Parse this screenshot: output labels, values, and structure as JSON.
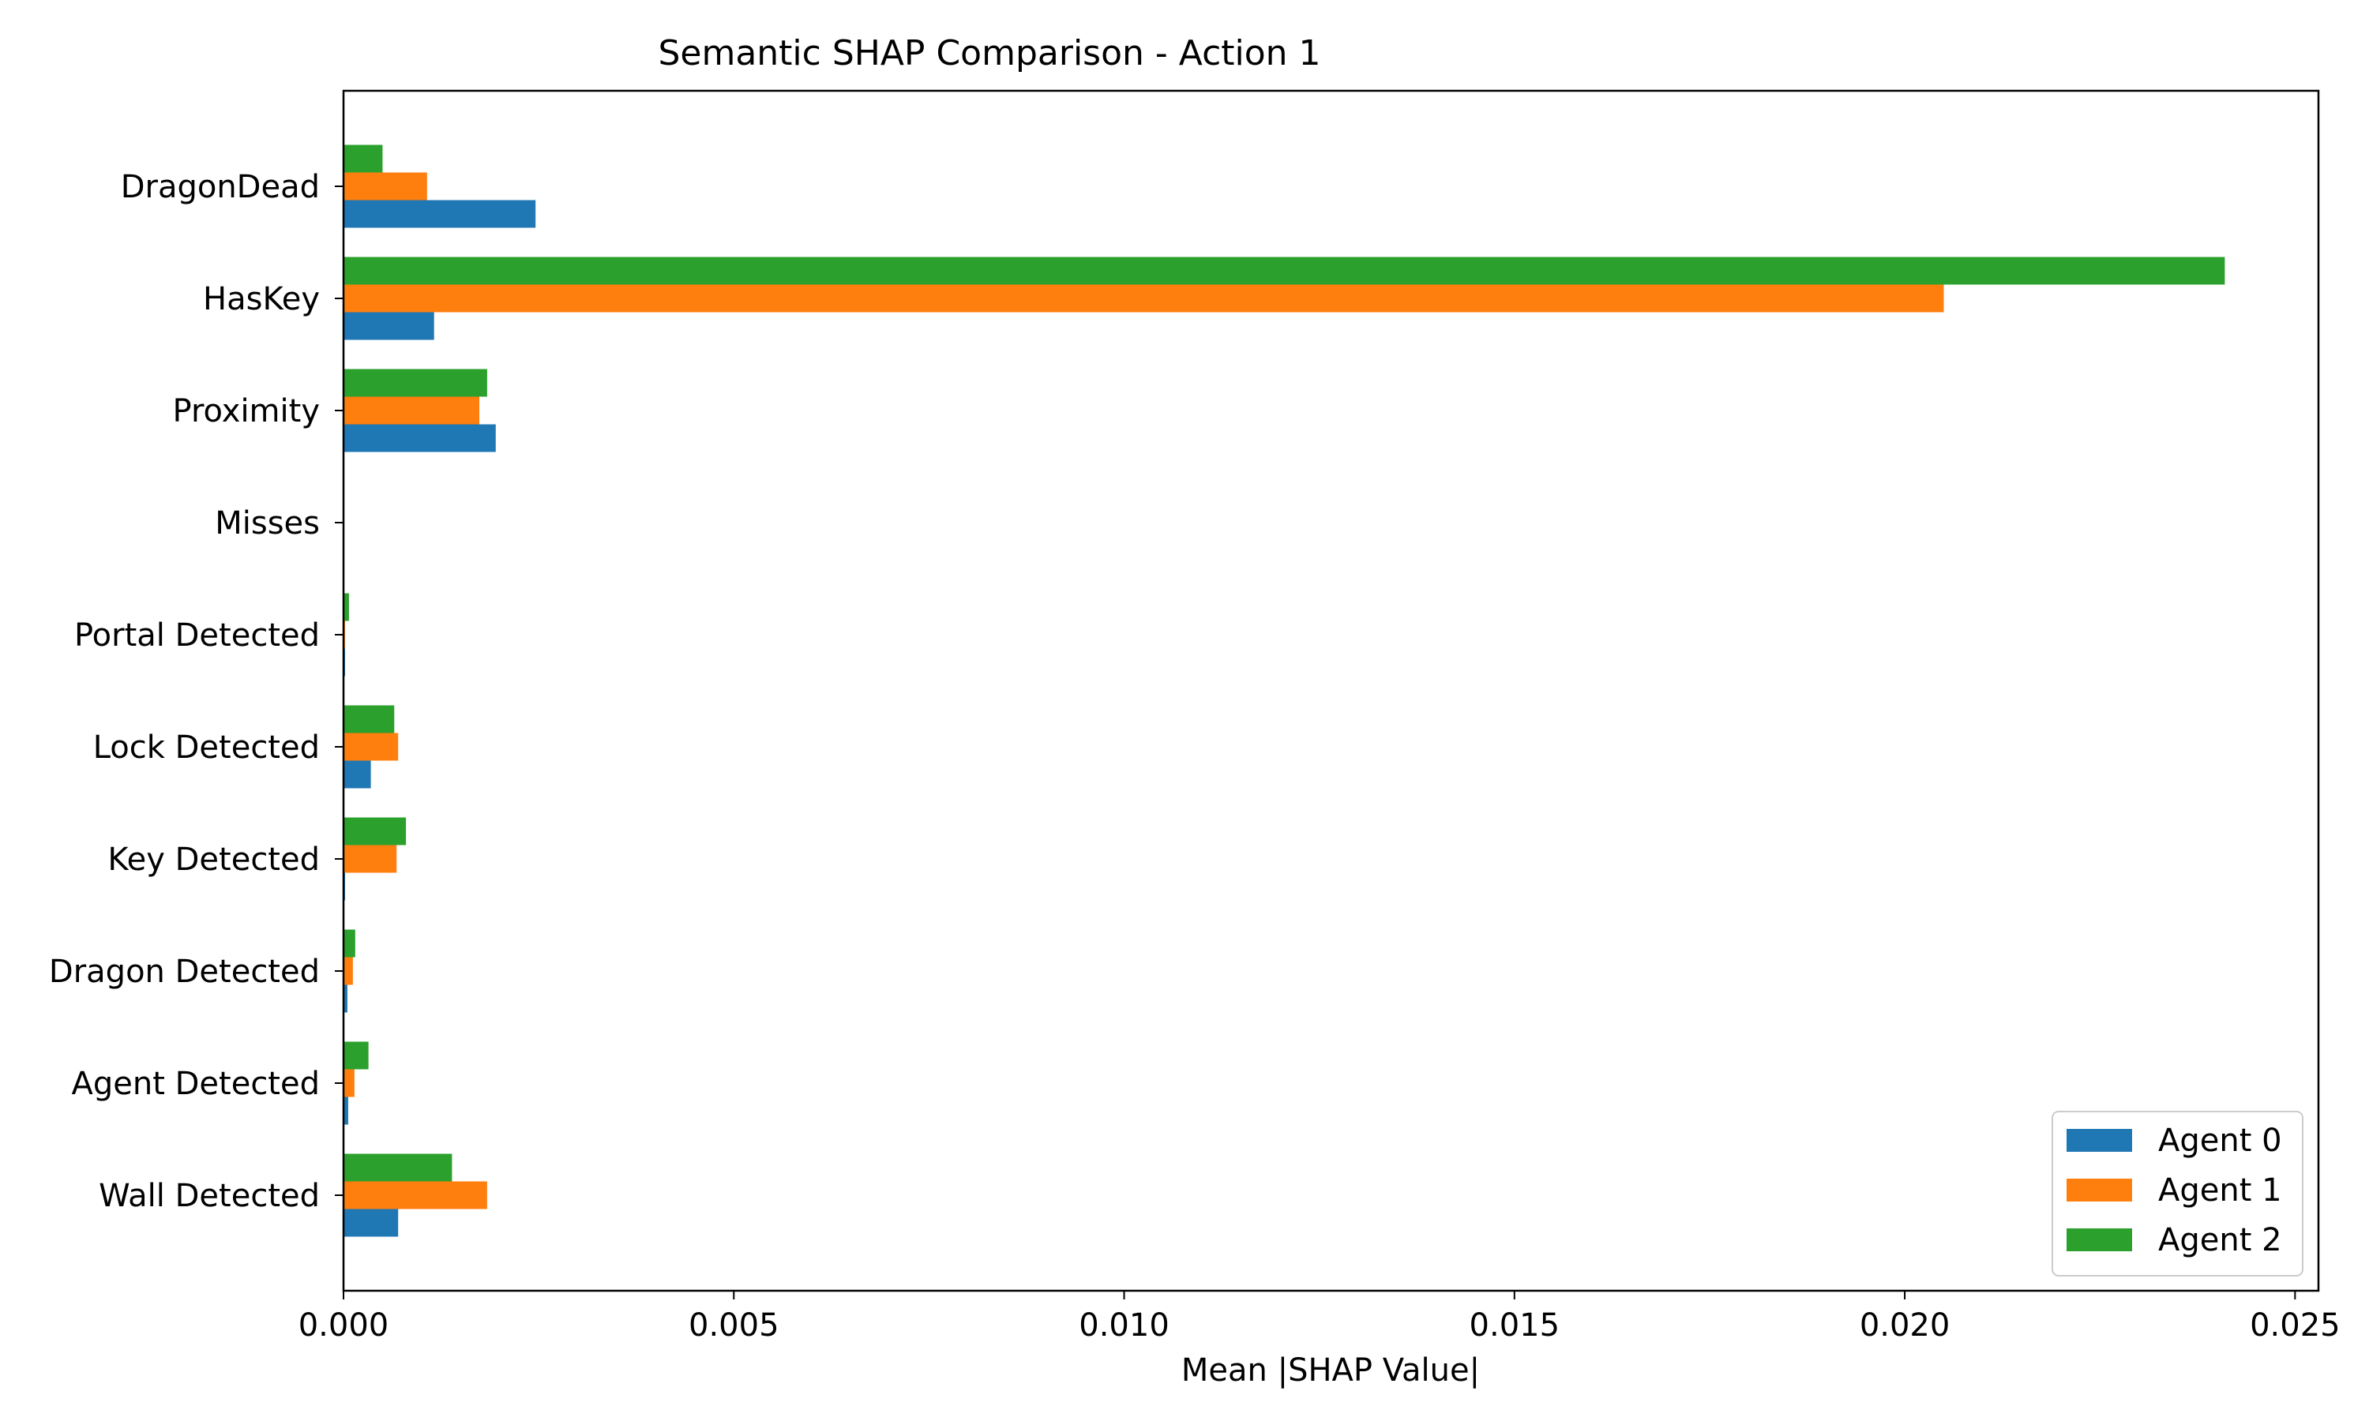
{
  "chart_data": {
    "type": "bar",
    "orientation": "horizontal",
    "title": "Semantic SHAP Comparison - Action 1",
    "xlabel": "Mean |SHAP Value|",
    "ylabel": "",
    "xlim": [
      0,
      0.0253
    ],
    "xticks": [
      {
        "value": 0.0,
        "label": "0.000"
      },
      {
        "value": 0.005,
        "label": "0.005"
      },
      {
        "value": 0.01,
        "label": "0.010"
      },
      {
        "value": 0.015,
        "label": "0.015"
      },
      {
        "value": 0.02,
        "label": "0.020"
      },
      {
        "value": 0.025,
        "label": "0.025"
      }
    ],
    "categories": [
      "DragonDead",
      "HasKey",
      "Proximity",
      "Misses",
      "Portal Detected",
      "Lock Detected",
      "Key Detected",
      "Dragon Detected",
      "Agent Detected",
      "Wall Detected"
    ],
    "series": [
      {
        "name": "Agent 0",
        "color": "#1f77b4",
        "values": [
          0.00246,
          0.00116,
          0.00195,
          0.0,
          2e-05,
          0.00035,
          2e-05,
          5e-05,
          6e-05,
          0.0007
        ]
      },
      {
        "name": "Agent 1",
        "color": "#ff7f0e",
        "values": [
          0.00107,
          0.0205,
          0.00174,
          0.0,
          2e-05,
          0.0007,
          0.00068,
          0.00012,
          0.00014,
          0.00184
        ]
      },
      {
        "name": "Agent 2",
        "color": "#2ca02c",
        "values": [
          0.0005,
          0.0241,
          0.00184,
          0.0,
          7e-05,
          0.00065,
          0.0008,
          0.00015,
          0.00032,
          0.00139
        ]
      }
    ],
    "legend": {
      "position": "lower-right"
    },
    "grid": false
  }
}
